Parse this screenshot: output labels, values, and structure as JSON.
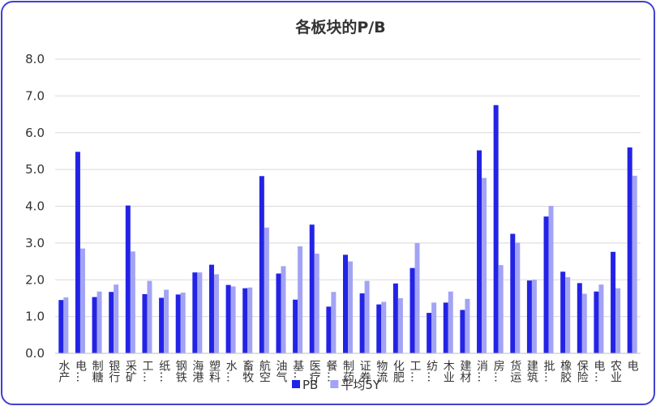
{
  "chart_data": {
    "type": "bar",
    "title": "各板块的P/B",
    "categories": [
      "水产",
      "电…",
      "制糖",
      "银行",
      "采矿",
      "工…",
      "纸…",
      "钢铁",
      "海港",
      "塑料",
      "水…",
      "畜牧",
      "航空",
      "油气",
      "基…",
      "医疗",
      "餐…",
      "制药",
      "证券",
      "物流",
      "化肥",
      "工…",
      "纺…",
      "木业",
      "建材",
      "消…",
      "房…",
      "货运",
      "建筑",
      "批…",
      "橡胶",
      "保险",
      "电…",
      "农业",
      "电"
    ],
    "series": [
      {
        "name": "PB",
        "color": "#2323e6",
        "values": [
          1.45,
          5.48,
          1.53,
          1.67,
          4.02,
          1.61,
          1.51,
          1.6,
          2.2,
          2.41,
          1.86,
          1.77,
          4.82,
          2.17,
          1.46,
          3.5,
          1.27,
          2.68,
          1.63,
          1.33,
          1.9,
          2.32,
          1.1,
          1.38,
          1.18,
          5.52,
          6.75,
          3.25,
          1.98,
          3.72,
          2.22,
          1.91,
          1.68,
          2.76,
          5.6
        ]
      },
      {
        "name": "平均5Y",
        "color": "#a3a3f5",
        "values": [
          1.52,
          2.85,
          1.68,
          1.87,
          2.77,
          1.97,
          1.73,
          1.65,
          2.2,
          2.15,
          1.82,
          1.79,
          3.42,
          2.37,
          2.91,
          2.71,
          1.67,
          2.5,
          1.97,
          1.4,
          1.5,
          3.0,
          1.38,
          1.68,
          1.48,
          4.77,
          2.4,
          3.01,
          2.0,
          4.01,
          2.07,
          1.62,
          1.87,
          1.77,
          4.83
        ]
      }
    ],
    "ylim": [
      0,
      8
    ],
    "yticks": [
      {
        "value": 0,
        "label": "0.0"
      },
      {
        "value": 1,
        "label": "1.0"
      },
      {
        "value": 2,
        "label": "2.0"
      },
      {
        "value": 3,
        "label": "3.0"
      },
      {
        "value": 4,
        "label": "4.0"
      },
      {
        "value": 5,
        "label": "5.0"
      },
      {
        "value": 6,
        "label": "6.0"
      },
      {
        "value": 7,
        "label": "7.0"
      },
      {
        "value": 8,
        "label": "8.0"
      }
    ],
    "grid": true,
    "legend": "bottom"
  }
}
